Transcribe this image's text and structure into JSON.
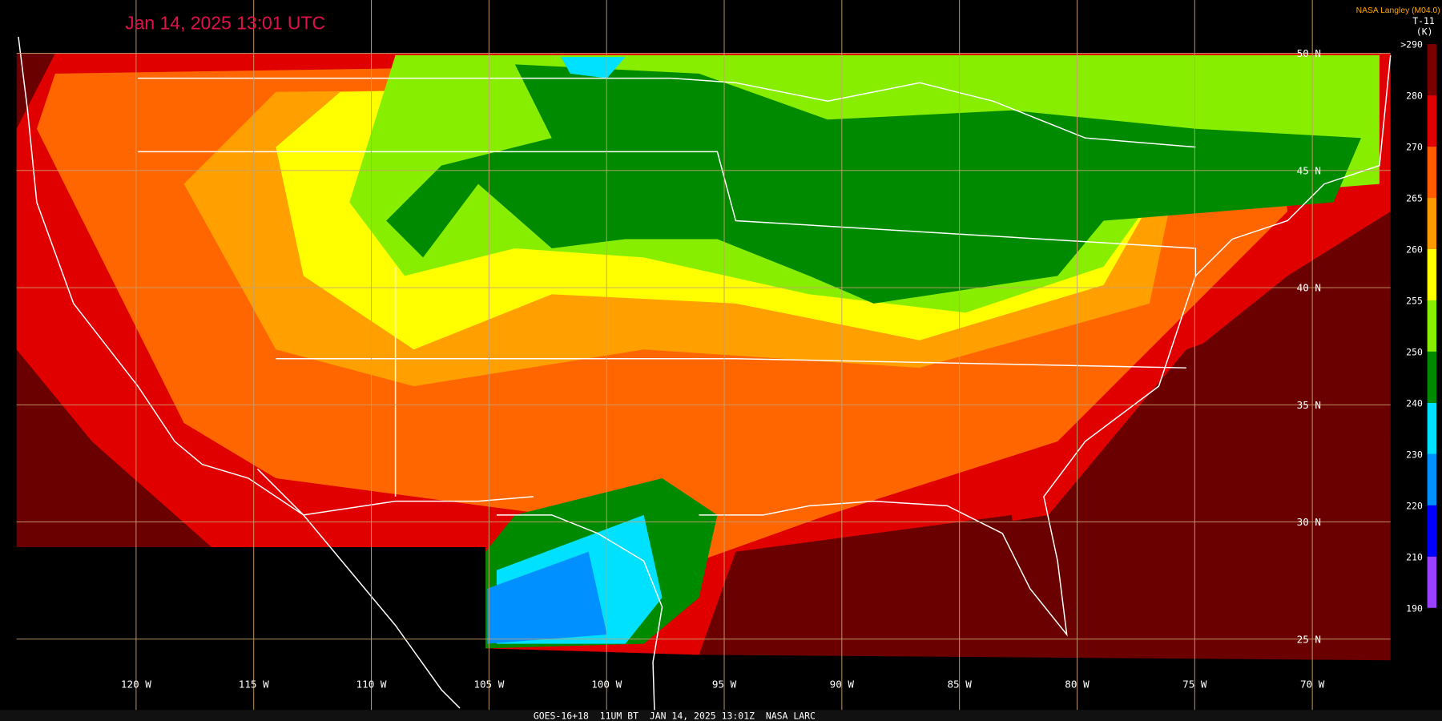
{
  "header": {
    "timestamp": "Jan 14, 2025 13:01 UTC",
    "producer": "NASA Langley (M04.0)"
  },
  "colorbar": {
    "title": "T-11",
    "unit": "(K)",
    "labels": [
      ">290",
      "280",
      "270",
      "265",
      "260",
      "255",
      "250",
      "240",
      "230",
      "220",
      "210",
      "190"
    ],
    "colors": [
      "#7a0000",
      "#e00000",
      "#ff5a00",
      "#ff9900",
      "#ffff00",
      "#88ee00",
      "#008a00",
      "#00e0ff",
      "#0090ff",
      "#0000ff",
      "#9a40ff"
    ]
  },
  "latitude_labels": [
    "50 N",
    "45 N",
    "40 N",
    "35 N",
    "30 N",
    "25 N"
  ],
  "longitude_labels": [
    "120 W",
    "115 W",
    "110 W",
    "105 W",
    "100 W",
    "95 W",
    "90 W",
    "85 W",
    "80 W",
    "75 W",
    "70 W"
  ],
  "footer": "GOES-16+18  11UM BT  JAN 14, 2025 13:01Z  NASA LARC"
}
